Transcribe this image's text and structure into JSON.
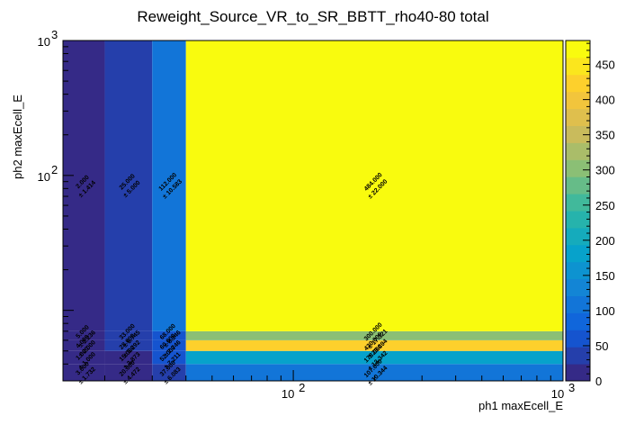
{
  "chart_data": {
    "type": "heatmap",
    "title": "Reweight_Source_VR_to_SR_BBTT_rho40-80 total",
    "xlabel": "ph1 maxEcell_E",
    "ylabel": "ph2 maxEcell_E",
    "x_scale": "log",
    "y_scale": "log",
    "x_edges": [
      14,
      20,
      30,
      40,
      1000
    ],
    "y_edges": [
      3,
      4,
      5,
      6,
      7,
      1000
    ],
    "x_ticks": [
      {
        "value": 100,
        "base": "10",
        "exp": "2"
      },
      {
        "value": 1000,
        "base": "10",
        "exp": "3"
      }
    ],
    "y_ticks": [
      {
        "value": 100,
        "base": "10",
        "exp": "2"
      },
      {
        "value": 1000,
        "base": "10",
        "exp": "3"
      }
    ],
    "zlim": [
      0,
      484
    ],
    "z_ticks": [
      0,
      50,
      100,
      150,
      200,
      250,
      300,
      350,
      400,
      450
    ],
    "z_tick_labels": [
      "0",
      "50",
      "100",
      "150",
      "200",
      "250",
      "300",
      "350",
      "400",
      "450"
    ],
    "cells": [
      {
        "xi": 0,
        "yi": 0,
        "value": 3,
        "error": 1.732,
        "label": "3.000",
        "error_label": "± 1.732"
      },
      {
        "xi": 1,
        "yi": 0,
        "value": 20,
        "error": 4.472,
        "label": "20.000",
        "error_label": "± 4.472"
      },
      {
        "xi": 2,
        "yi": 0,
        "value": 37,
        "error": 6.083,
        "label": "37.000",
        "error_label": "± 6.083"
      },
      {
        "xi": 3,
        "yi": 0,
        "value": 107,
        "error": 10.344,
        "label": "107.000",
        "error_label": "± 10.344"
      },
      {
        "xi": 0,
        "yi": 1,
        "value": 1,
        "error": 1,
        "label": "1.000",
        "error_label": "± 1.000"
      },
      {
        "xi": 1,
        "yi": 1,
        "value": 15,
        "error": 3.873,
        "label": "15.000",
        "error_label": "± 3.873"
      },
      {
        "xi": 2,
        "yi": 1,
        "value": 52,
        "error": 7.211,
        "label": "52.000",
        "error_label": "± 7.211"
      },
      {
        "xi": 3,
        "yi": 1,
        "value": 178,
        "error": 13.342,
        "label": "178.000",
        "error_label": "± 13.342"
      },
      {
        "xi": 0,
        "yi": 2,
        "value": 4,
        "error": 2,
        "label": "4.000",
        "error_label": "± 2.000"
      },
      {
        "xi": 1,
        "yi": 2,
        "value": 28,
        "error": 5.292,
        "label": "28.000",
        "error_label": "± 5.292"
      },
      {
        "xi": 2,
        "yi": 2,
        "value": 60,
        "error": 7.746,
        "label": "60.000",
        "error_label": "± 7.746"
      },
      {
        "xi": 3,
        "yi": 2,
        "value": 420,
        "error": 20.494,
        "label": "420.000",
        "error_label": "± 20.494"
      },
      {
        "xi": 0,
        "yi": 3,
        "value": 5,
        "error": 2.236,
        "label": "5.000",
        "error_label": "± 2.236"
      },
      {
        "xi": 1,
        "yi": 3,
        "value": 33,
        "error": 5.745,
        "label": "33.000",
        "error_label": "± 5.745"
      },
      {
        "xi": 2,
        "yi": 3,
        "value": 68,
        "error": 8.246,
        "label": "68.000",
        "error_label": "± 8.246"
      },
      {
        "xi": 3,
        "yi": 3,
        "value": 300,
        "error": 17.321,
        "label": "300.000",
        "error_label": "± 17.321"
      },
      {
        "xi": 0,
        "yi": 4,
        "value": 2,
        "error": 1.414,
        "label": "2.000",
        "error_label": "± 1.414"
      },
      {
        "xi": 1,
        "yi": 4,
        "value": 25,
        "error": 5,
        "label": "25.000",
        "error_label": "± 5.000"
      },
      {
        "xi": 2,
        "yi": 4,
        "value": 112,
        "error": 10.583,
        "label": "112.000",
        "error_label": "± 10.583"
      },
      {
        "xi": 3,
        "yi": 4,
        "value": 484,
        "error": 22,
        "label": "484.000",
        "error_label": "± 22.000"
      }
    ]
  }
}
